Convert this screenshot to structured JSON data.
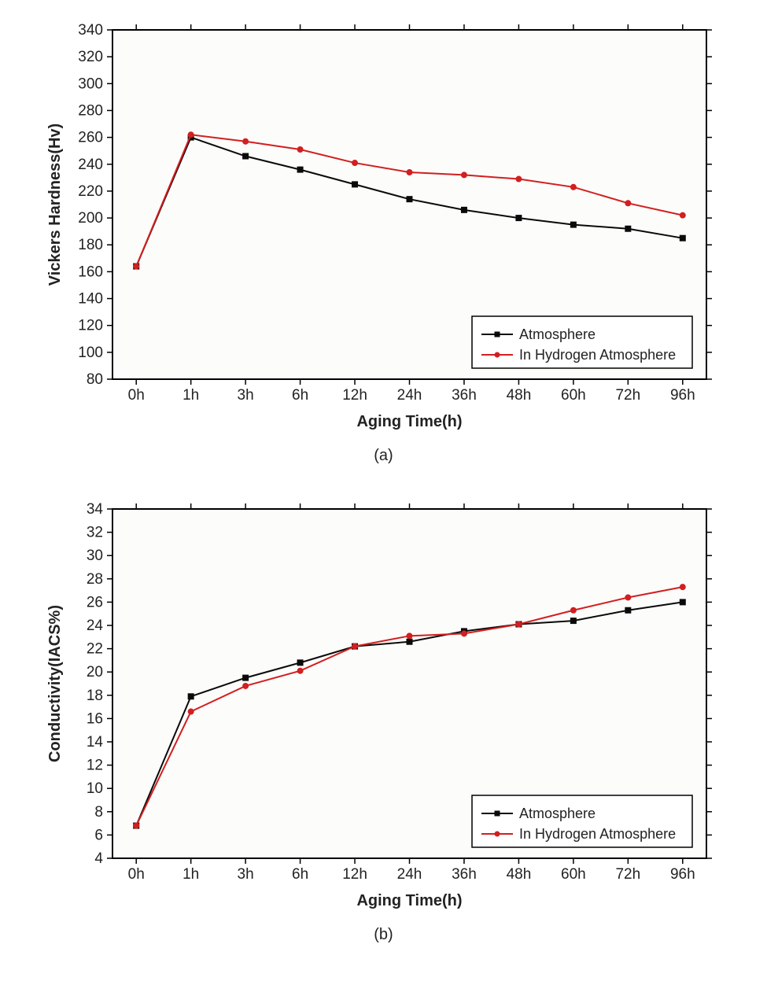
{
  "background_color": "#ffffff",
  "chart_a": {
    "type": "line",
    "subcaption": "(a)",
    "xlabel": "Aging Time(h)",
    "ylabel": "Vickers Hardness(Hv)",
    "label_fontsize": 20,
    "tick_fontsize": 19,
    "legend_fontsize": 18,
    "categories": [
      "0h",
      "1h",
      "3h",
      "6h",
      "12h",
      "24h",
      "36h",
      "48h",
      "60h",
      "72h",
      "96h"
    ],
    "ylim": [
      80,
      340
    ],
    "ytick_step": 20,
    "yticks": [
      80,
      100,
      120,
      140,
      160,
      180,
      200,
      220,
      240,
      260,
      280,
      300,
      320,
      340
    ],
    "plot_bg": "#fcfcfb",
    "border_color": "#000000",
    "grid_on": false,
    "line_width": 2,
    "marker_size": 7,
    "legend_position": "bottom-right",
    "legend_border": "#000000",
    "series": [
      {
        "name": "Atmosphere",
        "color": "#0a0a0a",
        "marker": "square",
        "values": [
          164,
          260,
          246,
          236,
          225,
          214,
          206,
          200,
          195,
          192,
          185
        ]
      },
      {
        "name": "In Hydrogen Atmosphere",
        "color": "#d21f1f",
        "marker": "circle",
        "values": [
          164,
          262,
          257,
          251,
          241,
          234,
          232,
          229,
          223,
          211,
          202
        ]
      }
    ]
  },
  "chart_b": {
    "type": "line",
    "subcaption": "(b)",
    "xlabel": "Aging Time(h)",
    "ylabel": "Conductivity(IACS%)",
    "label_fontsize": 20,
    "tick_fontsize": 19,
    "legend_fontsize": 18,
    "categories": [
      "0h",
      "1h",
      "3h",
      "6h",
      "12h",
      "24h",
      "36h",
      "48h",
      "60h",
      "72h",
      "96h"
    ],
    "ylim": [
      4,
      34
    ],
    "ytick_step": 2,
    "yticks": [
      4,
      6,
      8,
      10,
      12,
      14,
      16,
      18,
      20,
      22,
      24,
      26,
      28,
      30,
      32,
      34
    ],
    "plot_bg": "#fcfcfb",
    "border_color": "#000000",
    "grid_on": false,
    "line_width": 2,
    "marker_size": 7,
    "legend_position": "bottom-right",
    "legend_border": "#000000",
    "series": [
      {
        "name": "Atmosphere",
        "color": "#0a0a0a",
        "marker": "square",
        "values": [
          6.8,
          17.9,
          19.5,
          20.8,
          22.2,
          22.6,
          23.5,
          24.1,
          24.4,
          25.3,
          26.0
        ]
      },
      {
        "name": "In Hydrogen Atmosphere",
        "color": "#d21f1f",
        "marker": "circle",
        "values": [
          6.8,
          16.6,
          18.8,
          20.1,
          22.2,
          23.1,
          23.3,
          24.1,
          25.3,
          26.4,
          27.3
        ]
      }
    ]
  }
}
